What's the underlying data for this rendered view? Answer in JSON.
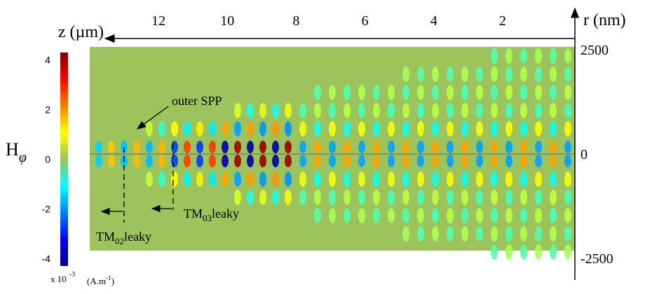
{
  "chart_data": {
    "type": "heatmap",
    "xlabel": "z (µm)",
    "ylabel": "r (nm)",
    "xlim": [
      0,
      14
    ],
    "xticks": [
      12,
      10,
      8,
      6,
      4,
      2
    ],
    "ylim": [
      -2500,
      2500
    ],
    "yticks": [
      2500,
      0,
      -2500
    ],
    "background_color": "#9cc35c",
    "colormap": "jet",
    "colorbar": {
      "label": "H",
      "label_sub": "φ",
      "lim": [
        -4.3,
        4.3
      ],
      "ticks": [
        4,
        2,
        0,
        -2,
        -4
      ],
      "multiplier": "x 10",
      "exponent": "-3",
      "unit": "(A.m",
      "unit_exponent": "-1",
      "unit_close": ")"
    },
    "annotations": [
      {
        "text": "outer SPP"
      },
      {
        "text": "TM",
        "sub": "02",
        "suffix": "leaky"
      },
      {
        "text": "TM",
        "sub": "03",
        "suffix": "leaky"
      }
    ]
  }
}
